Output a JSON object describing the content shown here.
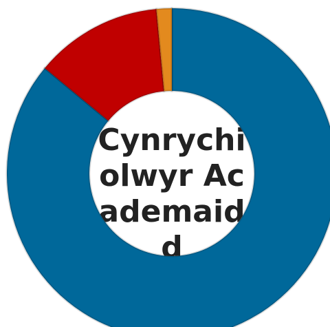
{
  "chart_data": {
    "type": "donut",
    "title": "Cynrychiolwyr Academaidd",
    "values": [
      86,
      12.5,
      1.5
    ],
    "colors": [
      "#00689a",
      "#c00000",
      "#e38a1e"
    ]
  }
}
